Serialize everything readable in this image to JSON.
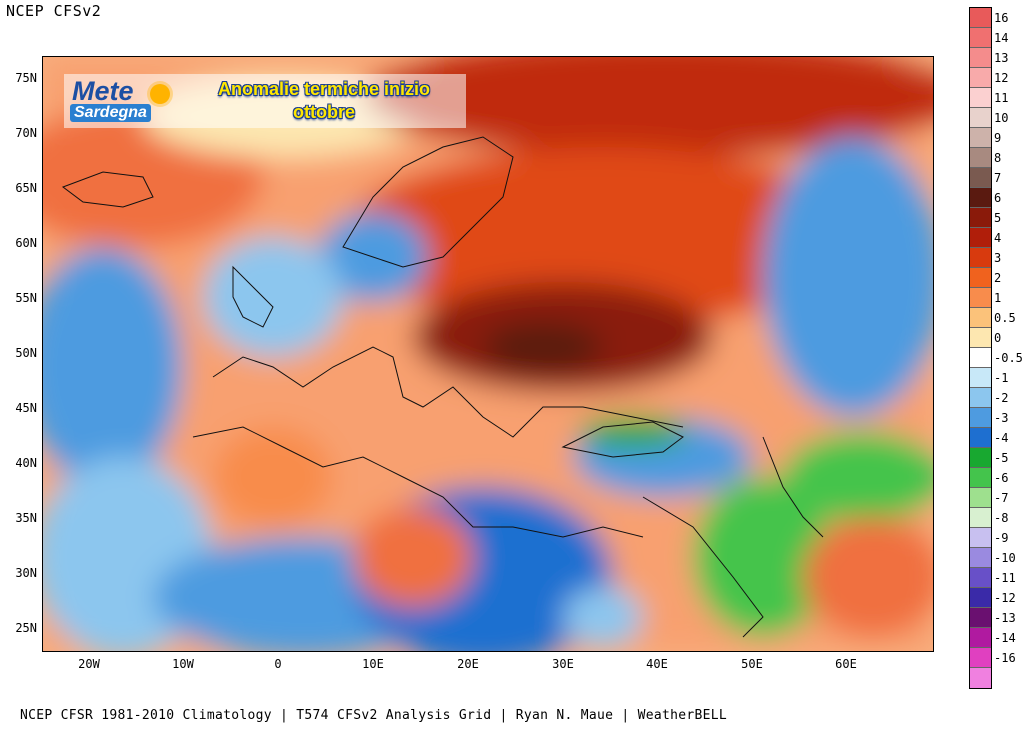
{
  "header": {
    "title": "NCEP CFSv2"
  },
  "map": {
    "heading_line1": "Anomalie termiche inizio",
    "heading_line2": "ottobre",
    "latitudes": [
      "75N",
      "70N",
      "65N",
      "60N",
      "55N",
      "50N",
      "45N",
      "40N",
      "35N",
      "30N",
      "25N"
    ],
    "longitudes": [
      "20W",
      "10W",
      "0",
      "10E",
      "20E",
      "30E",
      "40E",
      "50E",
      "60E"
    ]
  },
  "logo": {
    "word1": "Mete",
    "word2": "Sardegna"
  },
  "legend": {
    "entries": [
      {
        "label": "16",
        "color": "#e85a5a"
      },
      {
        "label": "14",
        "color": "#f07070"
      },
      {
        "label": "13",
        "color": "#f48c8c"
      },
      {
        "label": "12",
        "color": "#f8aaaa"
      },
      {
        "label": "11",
        "color": "#fbd0d0"
      },
      {
        "label": "10",
        "color": "#e8d2cc"
      },
      {
        "label": "9",
        "color": "#cdb2aa"
      },
      {
        "label": "8",
        "color": "#a88a80"
      },
      {
        "label": "7",
        "color": "#7a5a50"
      },
      {
        "label": "6",
        "color": "#5a1a10"
      },
      {
        "label": "5",
        "color": "#8a1a0a"
      },
      {
        "label": "4",
        "color": "#b01e0a"
      },
      {
        "label": "3",
        "color": "#d83a0e"
      },
      {
        "label": "2",
        "color": "#f0621e"
      },
      {
        "label": "1",
        "color": "#f88c4c"
      },
      {
        "label": "0.5",
        "color": "#fbc27a"
      },
      {
        "label": "0",
        "color": "#fde7b0"
      },
      {
        "label": "-0.5",
        "color": "#ffffff"
      },
      {
        "label": "-1",
        "color": "#c8e8f8"
      },
      {
        "label": "-2",
        "color": "#8cc6ee"
      },
      {
        "label": "-3",
        "color": "#4e9be0"
      },
      {
        "label": "-4",
        "color": "#1e6fd0"
      },
      {
        "label": "-5",
        "color": "#18a830"
      },
      {
        "label": "-6",
        "color": "#44c44c"
      },
      {
        "label": "-7",
        "color": "#9ee08e"
      },
      {
        "label": "-8",
        "color": "#d8f0d0"
      },
      {
        "label": "-9",
        "color": "#c8c0f0"
      },
      {
        "label": "-10",
        "color": "#9a8ae0"
      },
      {
        "label": "-11",
        "color": "#6850c8"
      },
      {
        "label": "-12",
        "color": "#3a2aa8"
      },
      {
        "label": "-13",
        "color": "#6a1070"
      },
      {
        "label": "-14",
        "color": "#b01aa0"
      },
      {
        "label": "-16",
        "color": "#e040c0"
      },
      {
        "label": "",
        "color": "#f080e0"
      }
    ]
  },
  "footer": {
    "credit": "NCEP CFSR 1981-2010 Climatology | T574 CFSv2 Analysis Grid | Ryan N. Maue | WeatherBELL"
  }
}
